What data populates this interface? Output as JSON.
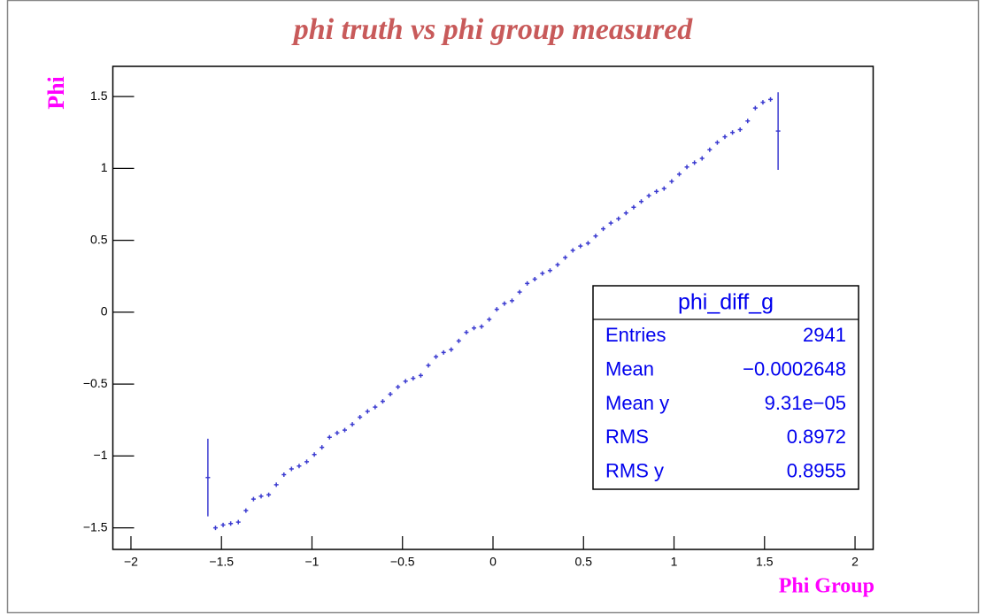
{
  "chart_data": {
    "type": "profile",
    "title": "phi truth vs phi group measured",
    "x_label": "Phi Group",
    "y_label": "Phi",
    "color": "#3b3bd0",
    "xlim": [
      -2.1,
      2.1
    ],
    "ylim": [
      -1.65,
      1.71
    ],
    "xticks": [
      {
        "value": -2,
        "label": "−2"
      },
      {
        "value": -1.5,
        "label": "−1.5"
      },
      {
        "value": -1,
        "label": "−1"
      },
      {
        "value": -0.5,
        "label": "−0.5"
      },
      0,
      0.5,
      1,
      1.5,
      2
    ],
    "yticks": [
      {
        "value": -1.5,
        "label": "−1.5"
      },
      {
        "value": -1,
        "label": "−1"
      },
      {
        "value": -0.5,
        "label": "−0.5"
      },
      0,
      0.5,
      1,
      1.5
    ],
    "x": [
      -1.575,
      -1.533,
      -1.491,
      -1.449,
      -1.407,
      -1.365,
      -1.323,
      -1.281,
      -1.239,
      -1.197,
      -1.155,
      -1.113,
      -1.071,
      -1.029,
      -0.987,
      -0.945,
      -0.903,
      -0.861,
      -0.819,
      -0.777,
      -0.735,
      -0.693,
      -0.651,
      -0.609,
      -0.567,
      -0.525,
      -0.483,
      -0.441,
      -0.399,
      -0.357,
      -0.315,
      -0.273,
      -0.231,
      -0.189,
      -0.147,
      -0.105,
      -0.063,
      -0.021,
      0.021,
      0.063,
      0.105,
      0.147,
      0.189,
      0.231,
      0.273,
      0.315,
      0.357,
      0.399,
      0.441,
      0.483,
      0.525,
      0.567,
      0.609,
      0.651,
      0.693,
      0.735,
      0.777,
      0.819,
      0.861,
      0.903,
      0.945,
      0.987,
      1.029,
      1.071,
      1.113,
      1.155,
      1.197,
      1.239,
      1.281,
      1.323,
      1.365,
      1.407,
      1.449,
      1.491,
      1.533,
      1.575
    ],
    "values": [
      -1.15,
      -1.5,
      -1.48,
      -1.47,
      -1.46,
      -1.38,
      -1.3,
      -1.28,
      -1.27,
      -1.2,
      -1.13,
      -1.09,
      -1.07,
      -1.04,
      -0.99,
      -0.94,
      -0.87,
      -0.84,
      -0.82,
      -0.78,
      -0.73,
      -0.69,
      -0.66,
      -0.62,
      -0.57,
      -0.52,
      -0.48,
      -0.46,
      -0.44,
      -0.37,
      -0.31,
      -0.28,
      -0.26,
      -0.2,
      -0.14,
      -0.11,
      -0.1,
      -0.05,
      0.02,
      0.06,
      0.08,
      0.14,
      0.2,
      0.23,
      0.27,
      0.29,
      0.33,
      0.38,
      0.43,
      0.46,
      0.48,
      0.53,
      0.58,
      0.62,
      0.65,
      0.69,
      0.73,
      0.77,
      0.81,
      0.84,
      0.86,
      0.91,
      0.96,
      1.01,
      1.04,
      1.07,
      1.13,
      1.18,
      1.22,
      1.25,
      1.27,
      1.33,
      1.42,
      1.46,
      1.48,
      1.26
    ],
    "errors": [
      0.27,
      0.01,
      0.01,
      0.01,
      0.01,
      0.01,
      0.01,
      0.01,
      0.01,
      0.01,
      0.01,
      0.01,
      0.01,
      0.01,
      0.01,
      0.01,
      0.01,
      0.01,
      0.01,
      0.01,
      0.01,
      0.01,
      0.01,
      0.01,
      0.01,
      0.01,
      0.01,
      0.01,
      0.01,
      0.01,
      0.01,
      0.01,
      0.01,
      0.01,
      0.01,
      0.01,
      0.01,
      0.01,
      0.01,
      0.01,
      0.01,
      0.01,
      0.01,
      0.01,
      0.01,
      0.01,
      0.01,
      0.01,
      0.01,
      0.01,
      0.01,
      0.01,
      0.01,
      0.01,
      0.01,
      0.01,
      0.01,
      0.01,
      0.01,
      0.01,
      0.01,
      0.01,
      0.01,
      0.01,
      0.01,
      0.01,
      0.01,
      0.01,
      0.01,
      0.01,
      0.01,
      0.01,
      0.01,
      0.01,
      0.01,
      0.27
    ],
    "stats": {
      "title": "phi_diff_g",
      "rows": [
        [
          "Entries",
          "2941"
        ],
        [
          "Mean",
          "−0.0002648"
        ],
        [
          "Mean y",
          "9.31e−05"
        ],
        [
          "RMS",
          "0.8972"
        ],
        [
          "RMS y",
          "0.8955"
        ]
      ]
    }
  }
}
